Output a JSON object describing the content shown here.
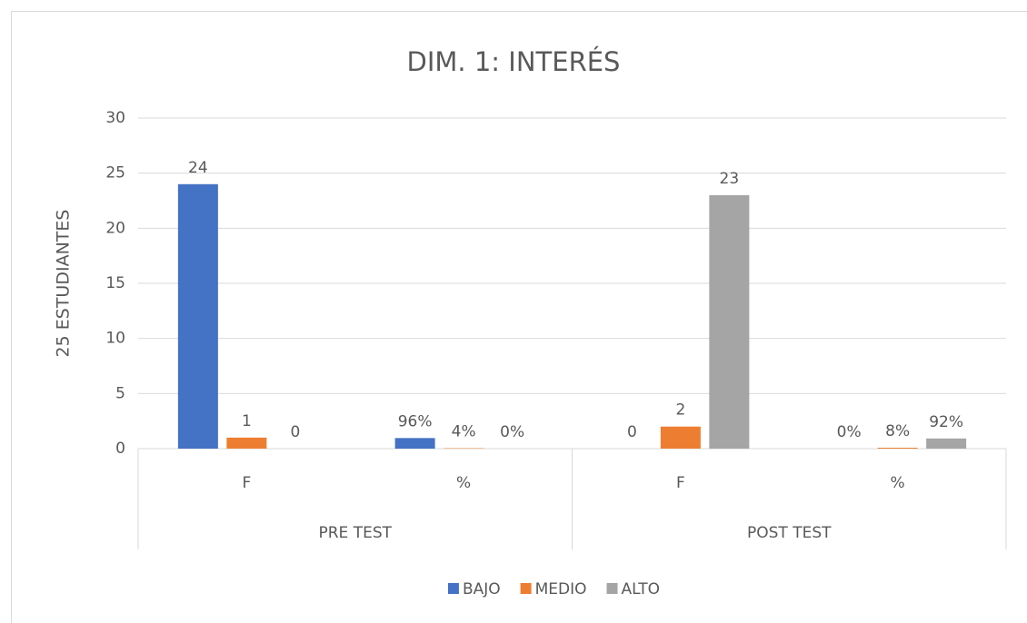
{
  "chart_data": {
    "type": "bar",
    "title": "DIM. 1: INTERÉS",
    "y_label": "25 ESTUDIANTES",
    "category_groups": [
      {
        "name": "PRE TEST",
        "categories": [
          "F",
          "%"
        ]
      },
      {
        "name": "POST TEST",
        "categories": [
          "F",
          "%"
        ]
      }
    ],
    "series": [
      {
        "name": "BAJO",
        "color": "#4472c4",
        "values": [
          24,
          0.96,
          0,
          0
        ],
        "value_labels": [
          "24",
          "96%",
          "0",
          "0%"
        ]
      },
      {
        "name": "MEDIO",
        "color": "#ed7d31",
        "values": [
          1,
          0.04,
          2,
          0.08
        ],
        "value_labels": [
          "1",
          "4%",
          "2",
          "8%"
        ]
      },
      {
        "name": "ALTO",
        "color": "#a5a5a5",
        "values": [
          0,
          0,
          23,
          0.92
        ],
        "value_labels": [
          "0",
          "0%",
          "23",
          "92%"
        ]
      }
    ],
    "ylim": [
      0,
      30
    ],
    "yticks": [
      0,
      5,
      10,
      15,
      20,
      25,
      30
    ],
    "grid": true,
    "legend": "bottom"
  }
}
